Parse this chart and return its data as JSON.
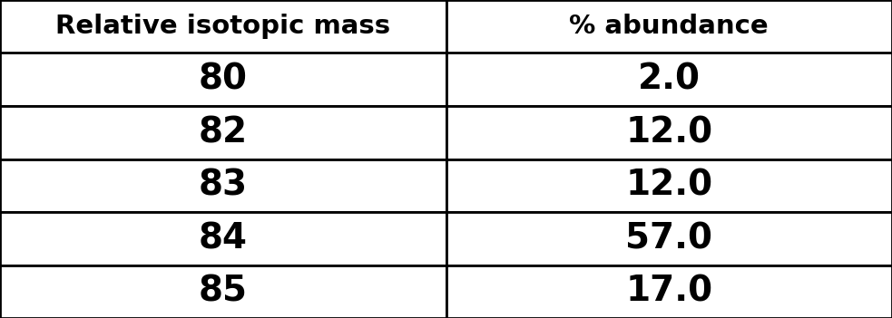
{
  "headers": [
    "Relative isotopic mass",
    "% abundance"
  ],
  "rows": [
    [
      "80",
      "2.0"
    ],
    [
      "82",
      "12.0"
    ],
    [
      "83",
      "12.0"
    ],
    [
      "84",
      "57.0"
    ],
    [
      "85",
      "17.0"
    ]
  ],
  "background_color": "#ffffff",
  "border_color": "#000000",
  "text_color": "#000000",
  "header_fontsize": 21,
  "cell_fontsize": 28,
  "fig_width": 9.83,
  "fig_height": 3.51,
  "dpi": 100
}
